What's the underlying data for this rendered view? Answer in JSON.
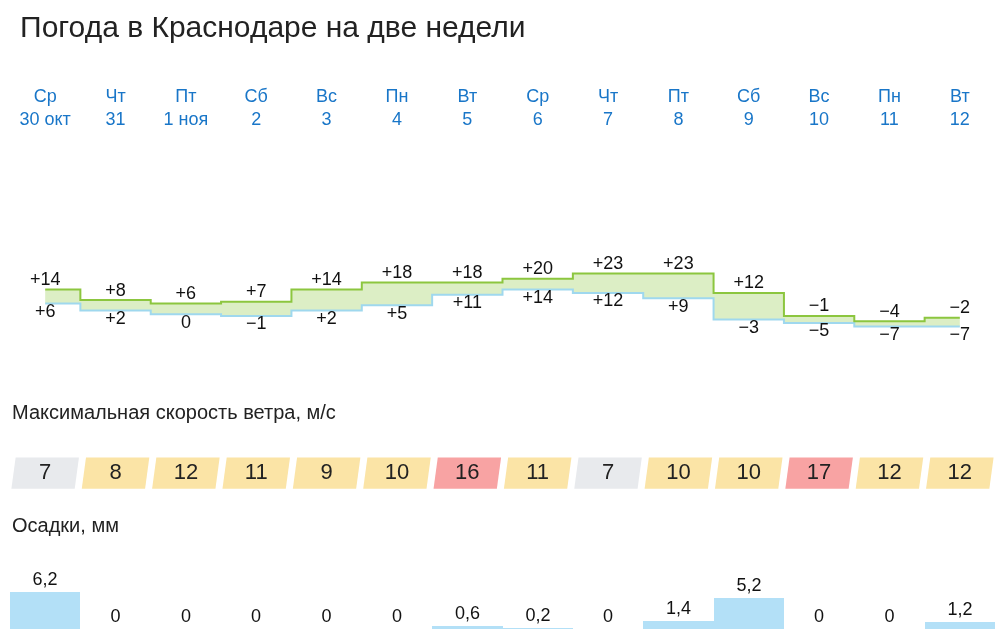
{
  "chart_data": [
    {
      "type": "step",
      "title": "Погода в Краснодаре на две недели",
      "categories": [
        "Ср\n30 окт",
        "Чт\n31",
        "Пт\n1 ноя",
        "Сб\n2",
        "Вс\n3",
        "Пн\n4",
        "Вт\n5",
        "Ср\n6",
        "Чт\n7",
        "Пт\n8",
        "Сб\n9",
        "Вс\n10",
        "Пн\n11",
        "Вт\n12"
      ],
      "series": [
        {
          "color": "#8cc63f",
          "values": [
            14,
            8,
            6,
            7,
            14,
            18,
            18,
            20,
            23,
            23,
            12,
            -1,
            -4,
            -2
          ],
          "value_labels": [
            "+14",
            "+8",
            "+6",
            "+7",
            "+14",
            "+18",
            "+18",
            "+20",
            "+23",
            "+23",
            "+12",
            "−1",
            "−4",
            "−2"
          ]
        },
        {
          "color": "#9fd8ee",
          "values": [
            6,
            2,
            0,
            -1,
            2,
            5,
            11,
            14,
            12,
            9,
            -3,
            -5,
            -7,
            -7
          ],
          "value_labels": [
            "+6",
            "+2",
            "0",
            "−1",
            "+2",
            "+5",
            "+11",
            "+14",
            "+12",
            "+9",
            "−3",
            "−5",
            "−7",
            "−7"
          ]
        }
      ]
    },
    {
      "type": "other",
      "title": "Максимальная скорость ветра, м/с",
      "values": [
        7,
        8,
        12,
        11,
        9,
        10,
        16,
        11,
        7,
        10,
        10,
        17,
        12,
        12
      ],
      "colors": [
        "#e8eaed",
        "#fbe4a6",
        "#fbe4a6",
        "#fbe4a6",
        "#fbe4a6",
        "#fbe4a6",
        "#f8a3a3",
        "#fbe4a6",
        "#e8eaed",
        "#fbe4a6",
        "#fbe4a6",
        "#f8a3a3",
        "#fbe4a6",
        "#fbe4a6"
      ],
      "data_labels": true
    },
    {
      "type": "bar",
      "title": "Осадки, мм",
      "categories": [
        null,
        null,
        null,
        null,
        null,
        null,
        null,
        null,
        null,
        null,
        null,
        null,
        null,
        null
      ],
      "values": [
        6.2,
        0,
        0,
        0,
        0,
        0,
        0.6,
        0.2,
        0,
        1.4,
        5.2,
        0,
        0,
        1.2
      ],
      "value_labels": [
        "6,2",
        "0",
        "0",
        "0",
        "0",
        "0",
        "0,6",
        "0,2",
        "0",
        "1,4",
        "5,2",
        "0",
        "0",
        "1,2"
      ],
      "color": "#b3e0f7"
    }
  ]
}
